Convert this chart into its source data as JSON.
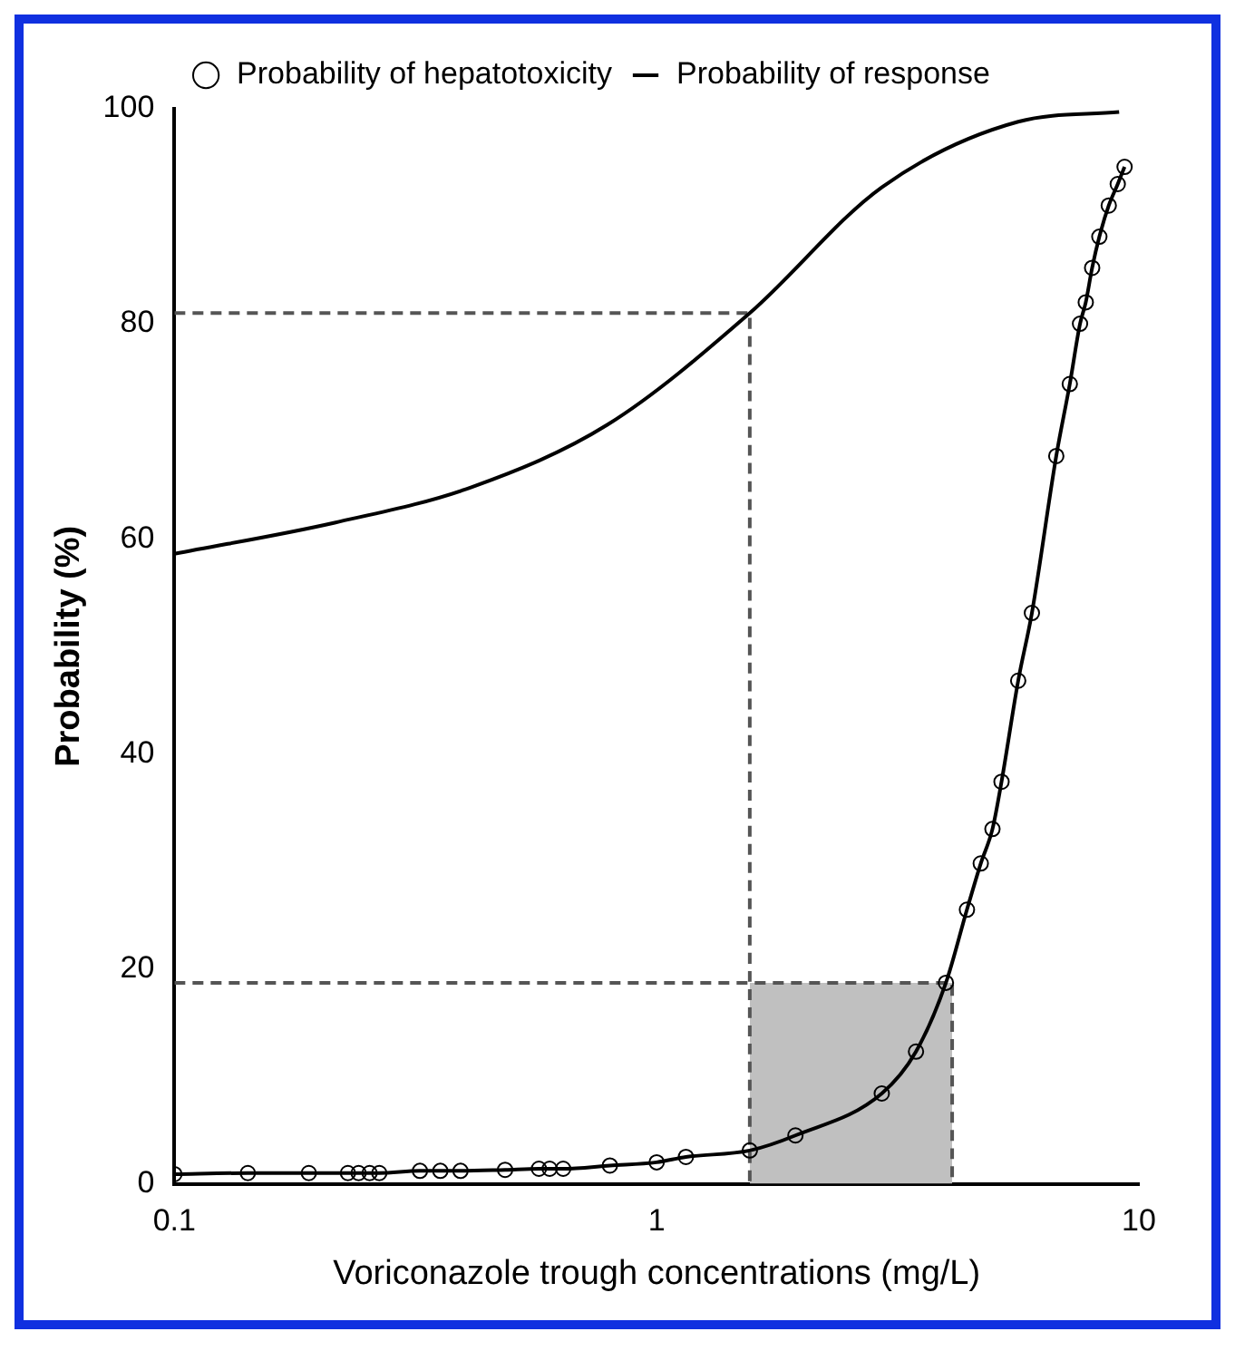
{
  "chart_data": {
    "type": "line",
    "xlabel": "Voriconazole trough concentrations (mg/L)",
    "ylabel": "Probability (%)",
    "log": "x",
    "xlim": [
      0.1,
      10
    ],
    "ylim": [
      0,
      100
    ],
    "xticks": [
      0.1,
      1,
      10
    ],
    "yticks": [
      0,
      20,
      40,
      60,
      80,
      100
    ],
    "grid": false,
    "legend": "top",
    "series": [
      {
        "name": "Probability of hepatotoxicity",
        "color": "#000000",
        "marker": "circle",
        "x": [
          0.1,
          0.142,
          0.19,
          0.229,
          0.241,
          0.254,
          0.266,
          0.323,
          0.356,
          0.392,
          0.485,
          0.57,
          0.6,
          0.64,
          0.8,
          1.0,
          1.15,
          1.56,
          1.94,
          2.93,
          3.45,
          3.98,
          4.4,
          4.7,
          4.97,
          5.19,
          5.62,
          6.0,
          6.74,
          7.19,
          7.55,
          7.76,
          8.0,
          8.28,
          8.66,
          9.04,
          9.34
        ],
        "values": [
          0.9,
          1.0,
          1.0,
          1.0,
          1.0,
          1.0,
          1.0,
          1.2,
          1.2,
          1.2,
          1.3,
          1.4,
          1.4,
          1.4,
          1.7,
          2.0,
          2.5,
          3.1,
          4.5,
          8.4,
          12.3,
          18.7,
          25.5,
          29.8,
          33,
          37.4,
          46.8,
          53.1,
          67.7,
          74.4,
          80,
          82,
          85.2,
          88.1,
          91,
          93,
          94.6
        ]
      },
      {
        "name": "Probability of response",
        "color": "#000000",
        "marker": "none",
        "x": [
          0.1,
          0.215,
          0.413,
          0.79,
          1.56,
          2.93,
          5.62,
          9.1
        ],
        "values": [
          58.6,
          61.5,
          64.8,
          70.6,
          81,
          92.7,
          98.8,
          99.7
        ]
      },
      {
        "type": "area",
        "color": "#c0c0c0",
        "marker": "none",
        "x": [
          1.56,
          4.1
        ],
        "values": [
          18.7,
          18.7
        ]
      },
      {
        "color": "#555555",
        "marker": "none",
        "line_style": "dashed",
        "x": [
          0.1,
          1.56,
          1.56
        ],
        "values": [
          81,
          81,
          0
        ]
      },
      {
        "color": "#555555",
        "marker": "none",
        "line_style": "dashed",
        "x": [
          0.1,
          4.1,
          4.1
        ],
        "values": [
          18.7,
          18.7,
          0
        ]
      }
    ]
  }
}
